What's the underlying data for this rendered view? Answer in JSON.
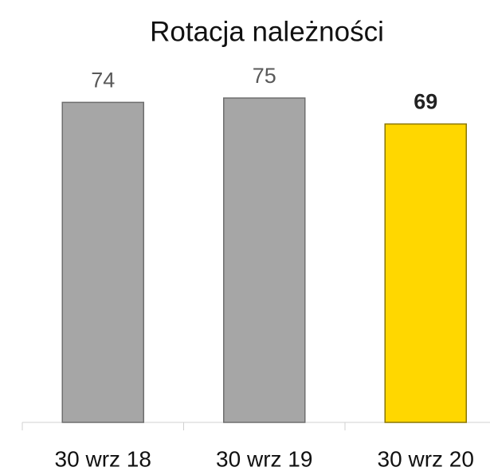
{
  "chart_data": {
    "type": "bar",
    "title": "Rotacja należności",
    "categories": [
      "30 wrz 18",
      "30 wrz 19",
      "30 wrz 20"
    ],
    "values": [
      74,
      75,
      69
    ],
    "colors": [
      "#a6a6a6",
      "#a6a6a6",
      "#ffd700"
    ],
    "highlight_index": 2
  }
}
